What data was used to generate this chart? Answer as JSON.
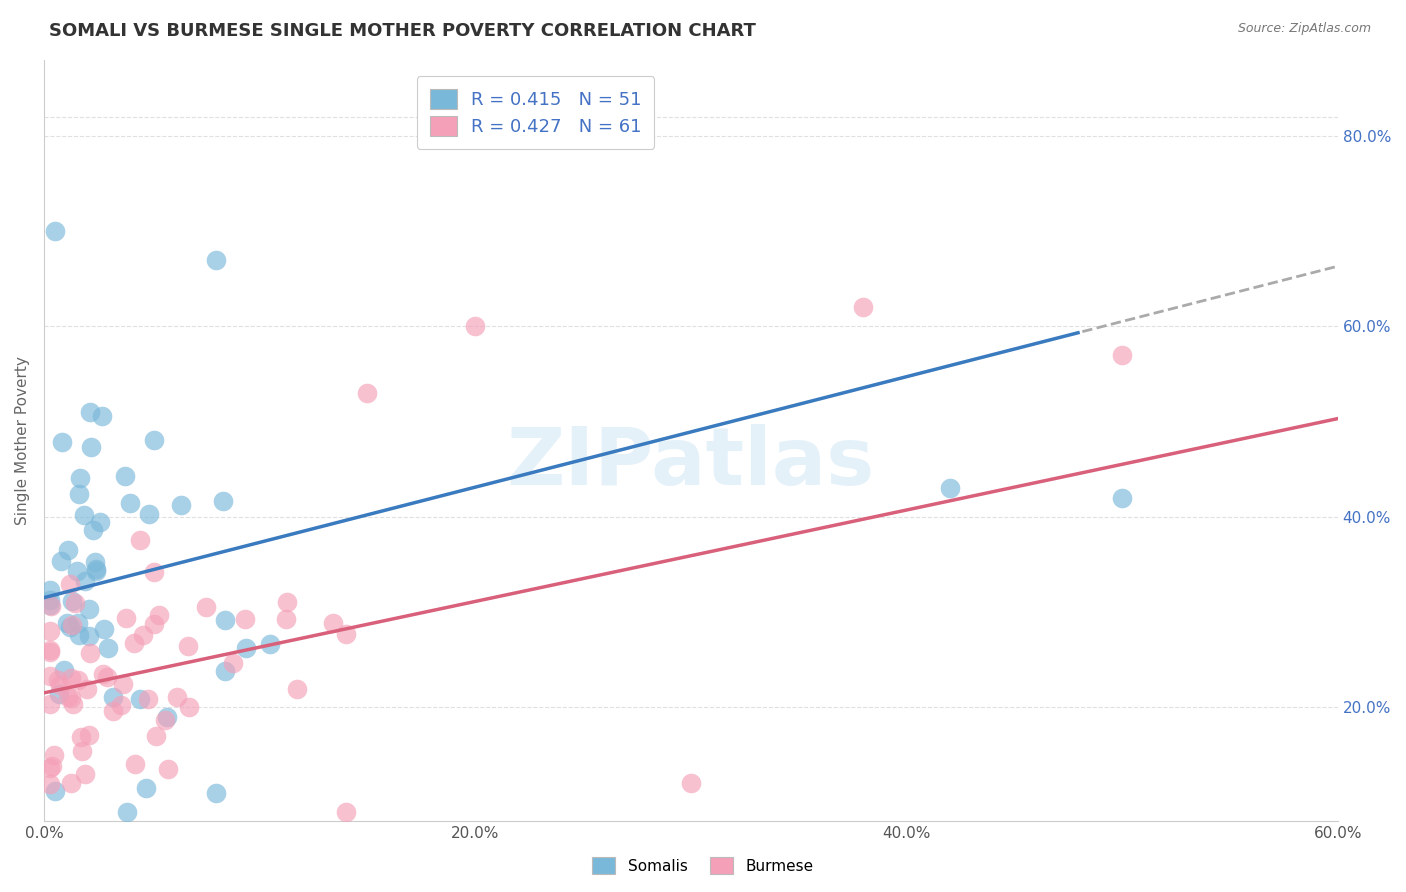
{
  "title": "SOMALI VS BURMESE SINGLE MOTHER POVERTY CORRELATION CHART",
  "source": "Source: ZipAtlas.com",
  "ylabel": "Single Mother Poverty",
  "xlim": [
    0.0,
    0.6
  ],
  "ylim": [
    0.08,
    0.88
  ],
  "right_yticks": [
    0.2,
    0.4,
    0.6,
    0.8
  ],
  "right_yticklabels": [
    "20.0%",
    "40.0%",
    "60.0%",
    "80.0%"
  ],
  "xtick_vals": [
    0.0,
    0.1,
    0.2,
    0.3,
    0.4,
    0.5,
    0.6
  ],
  "xtick_labels": [
    "0.0%",
    "",
    "20.0%",
    "",
    "40.0%",
    "",
    "60.0%"
  ],
  "somali_R": 0.415,
  "somali_N": 51,
  "burmese_R": 0.427,
  "burmese_N": 61,
  "somali_color": "#7ab8d9",
  "burmese_color": "#f4a0b8",
  "somali_line_color": "#3a7abf",
  "burmese_line_color": "#d9607a",
  "somali_line_intercept": 0.315,
  "somali_line_slope": 0.58,
  "burmese_line_intercept": 0.215,
  "burmese_line_slope": 0.48,
  "legend_label_somali": "Somalis",
  "legend_label_burmese": "Burmese",
  "watermark": "ZIPatlas",
  "grid_color": "#e0e0e0",
  "title_fontsize": 13,
  "tick_fontsize": 11
}
